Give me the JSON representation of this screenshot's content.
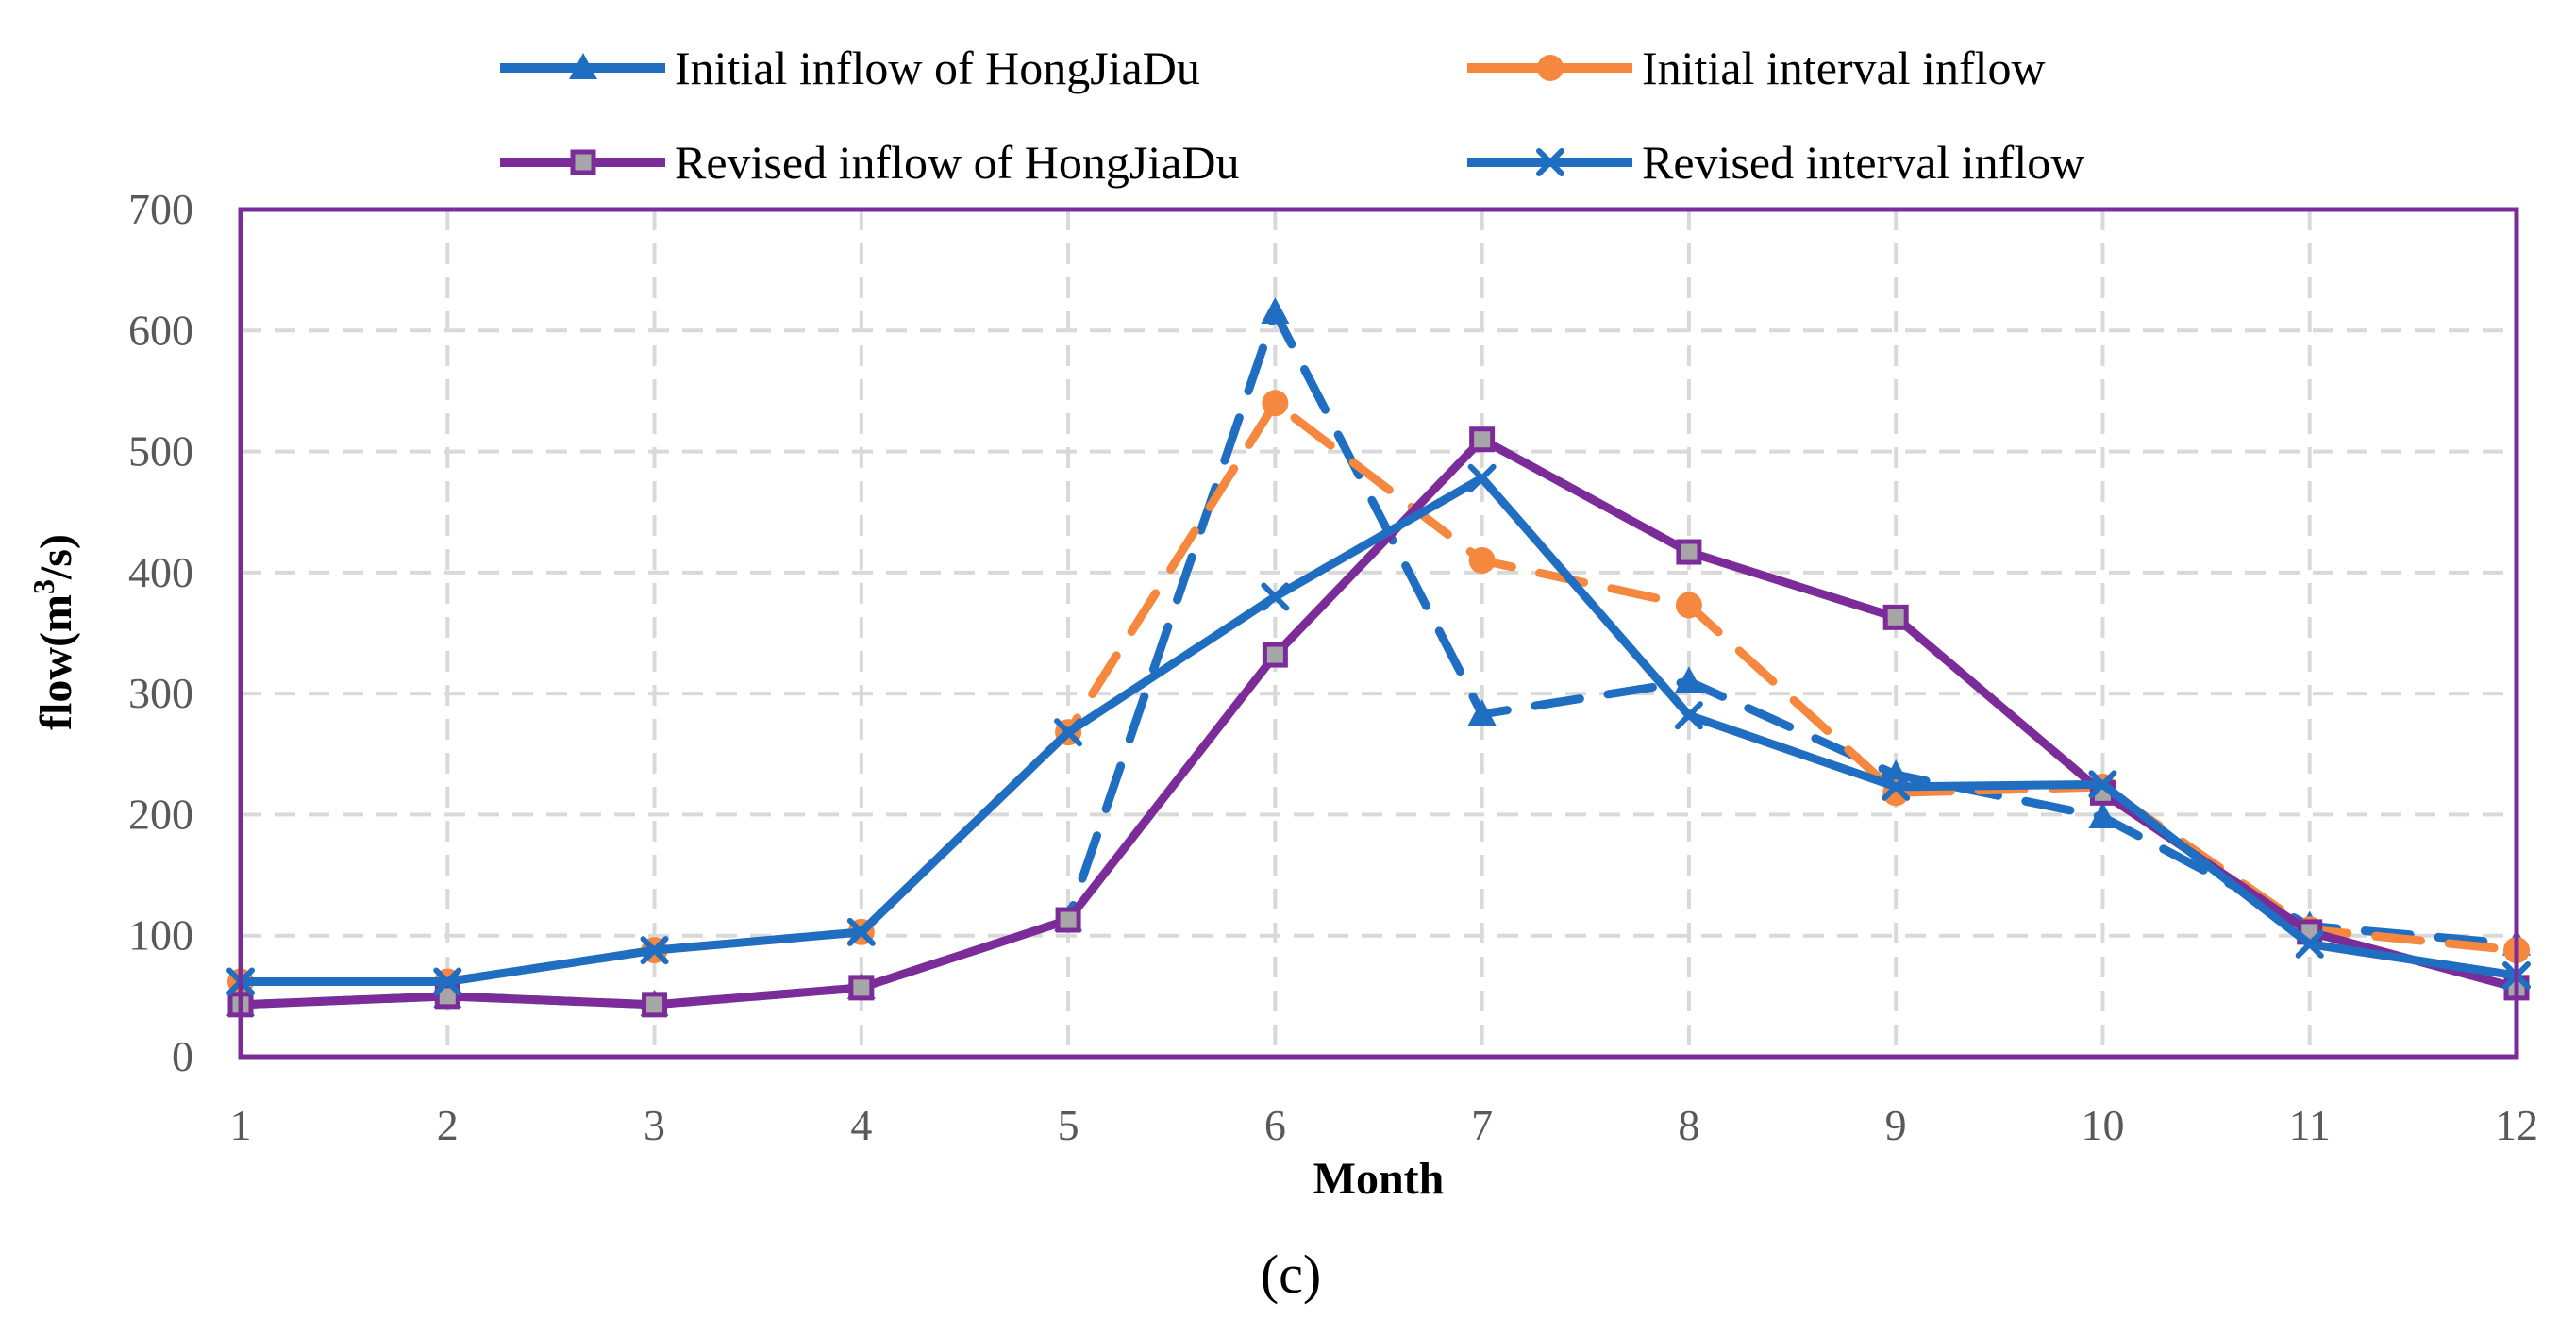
{
  "chart_data": {
    "type": "line",
    "title": "",
    "xlabel": "Month",
    "ylabel": "flow(m³/s)",
    "ylabel_base": "flow(m",
    "ylabel_sup": "3",
    "ylabel_tail": "/s)",
    "caption": "(c)",
    "categories": [
      "1",
      "2",
      "3",
      "4",
      "5",
      "6",
      "7",
      "8",
      "9",
      "10",
      "11",
      "12"
    ],
    "x": [
      1,
      2,
      3,
      4,
      5,
      6,
      7,
      8,
      9,
      10,
      11,
      12
    ],
    "ylim": [
      0,
      700
    ],
    "yticks": [
      0,
      100,
      200,
      300,
      400,
      500,
      600,
      700
    ],
    "grid": true,
    "legend_position": "top",
    "series": [
      {
        "name": "Initial inflow of HongJiaDu",
        "color": "#1F6EC2",
        "marker": "triangle",
        "dashed": true,
        "values": [
          43,
          50,
          43,
          57,
          113,
          615,
          283,
          310,
          233,
          198,
          108,
          93
        ]
      },
      {
        "name": "Initial interval inflow",
        "color": "#F6873F",
        "marker": "circle",
        "dashed": true,
        "values": [
          62,
          62,
          88,
          103,
          268,
          540,
          410,
          373,
          218,
          223,
          105,
          88
        ]
      },
      {
        "name": "Revised inflow of HongJiaDu",
        "color": "#7B2C98",
        "marker": "square",
        "dashed": false,
        "values": [
          43,
          50,
          43,
          57,
          113,
          332,
          510,
          417,
          363,
          218,
          103,
          57
        ]
      },
      {
        "name": "Revised interval inflow",
        "color": "#1F6EC2",
        "marker": "x",
        "dashed": false,
        "values": [
          62,
          62,
          88,
          103,
          268,
          380,
          478,
          282,
          223,
          225,
          93,
          67
        ]
      }
    ]
  }
}
